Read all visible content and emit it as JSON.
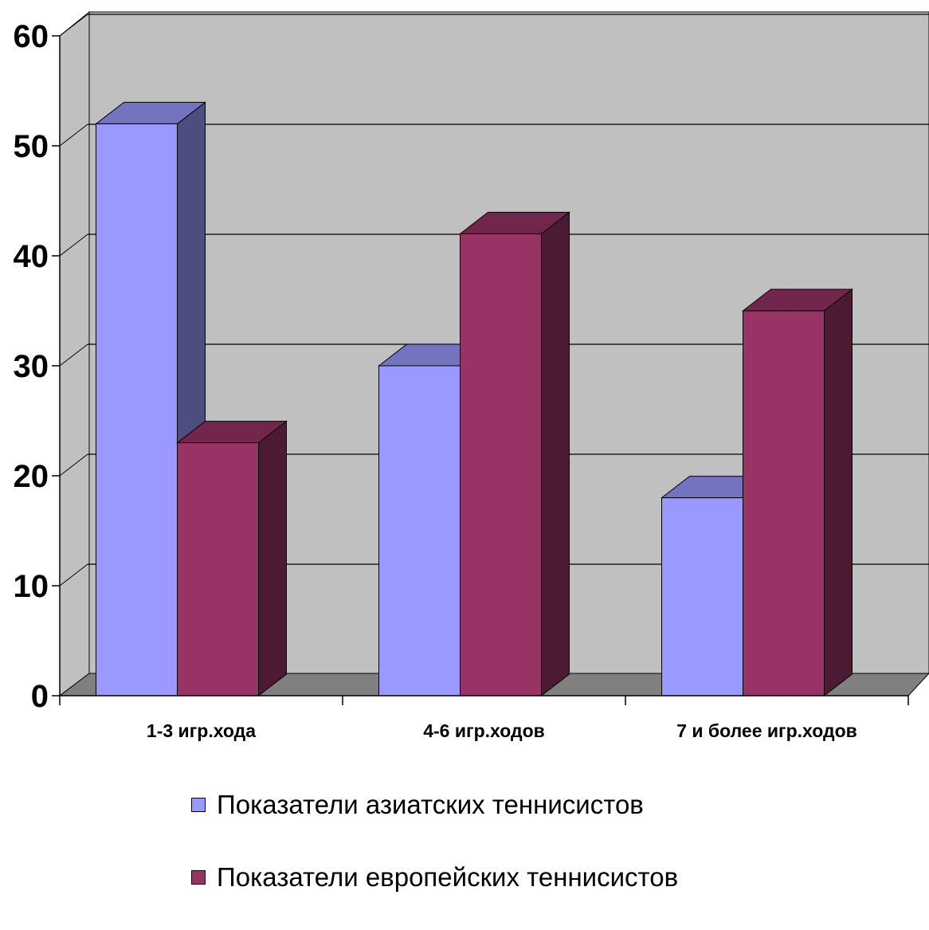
{
  "chart_data": {
    "type": "bar",
    "style": "3d-clustered",
    "categories": [
      "1-3 игр.хода",
      "4-6 игр.ходов",
      "7 и более игр.ходов"
    ],
    "series": [
      {
        "name": "Показатели азиатских теннисистов",
        "values": [
          52,
          30,
          18
        ],
        "color": "#9999FF",
        "side_color": "#4D4D80",
        "top_color": "#7373C0"
      },
      {
        "name": "Показатели европейских теннисистов",
        "values": [
          23,
          42,
          35
        ],
        "color": "#993366",
        "side_color": "#4D1A33",
        "top_color": "#73264D"
      }
    ],
    "ylim": [
      0,
      60
    ],
    "yticks": [
      "0",
      "10",
      "20",
      "30",
      "40",
      "50",
      "60"
    ],
    "grid": true,
    "legend_position": "bottom",
    "wall_color": "#C0C0C0",
    "floor_color": "#808080"
  }
}
